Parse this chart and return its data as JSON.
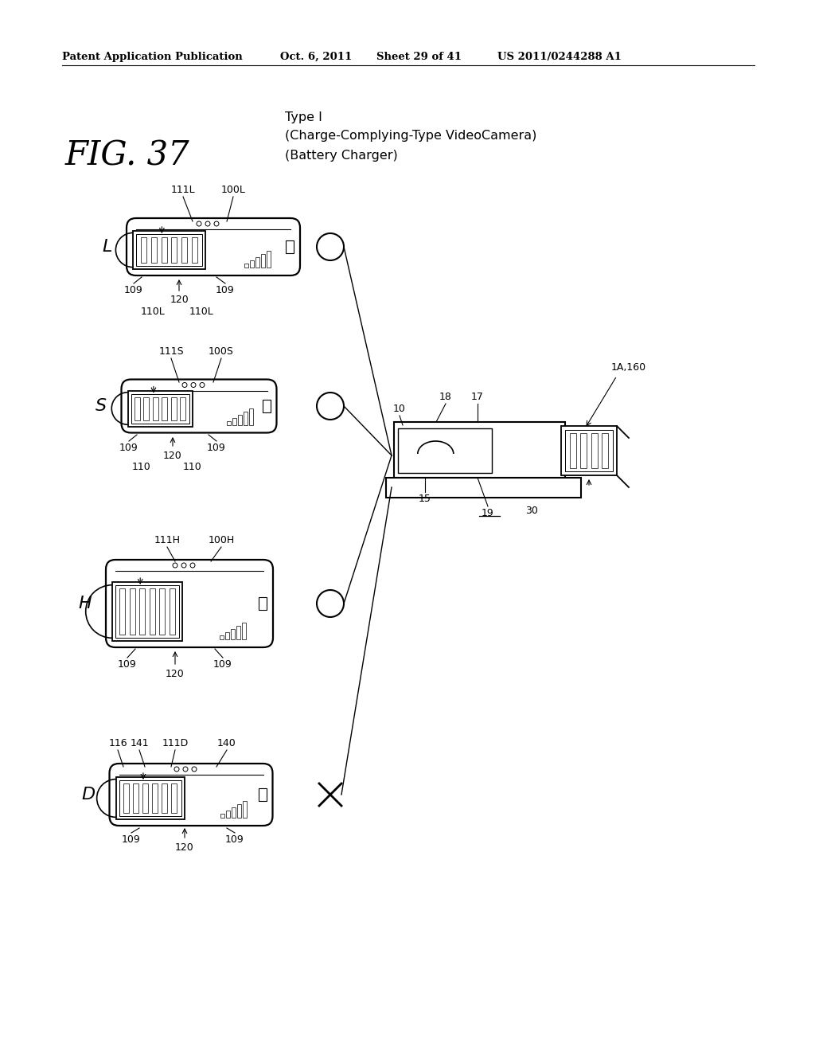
{
  "bg_color": "#ffffff",
  "header_text": "Patent Application Publication",
  "header_date": "Oct. 6, 2011",
  "header_sheet": "Sheet 29 of 41",
  "header_patent": "US 2011/0244288 A1",
  "fig_label": "FIG. 37",
  "type_label": "Type I",
  "type_sub1": "(Charge-Complying-Type VideoCamera)",
  "type_sub2": "(Battery Charger)"
}
